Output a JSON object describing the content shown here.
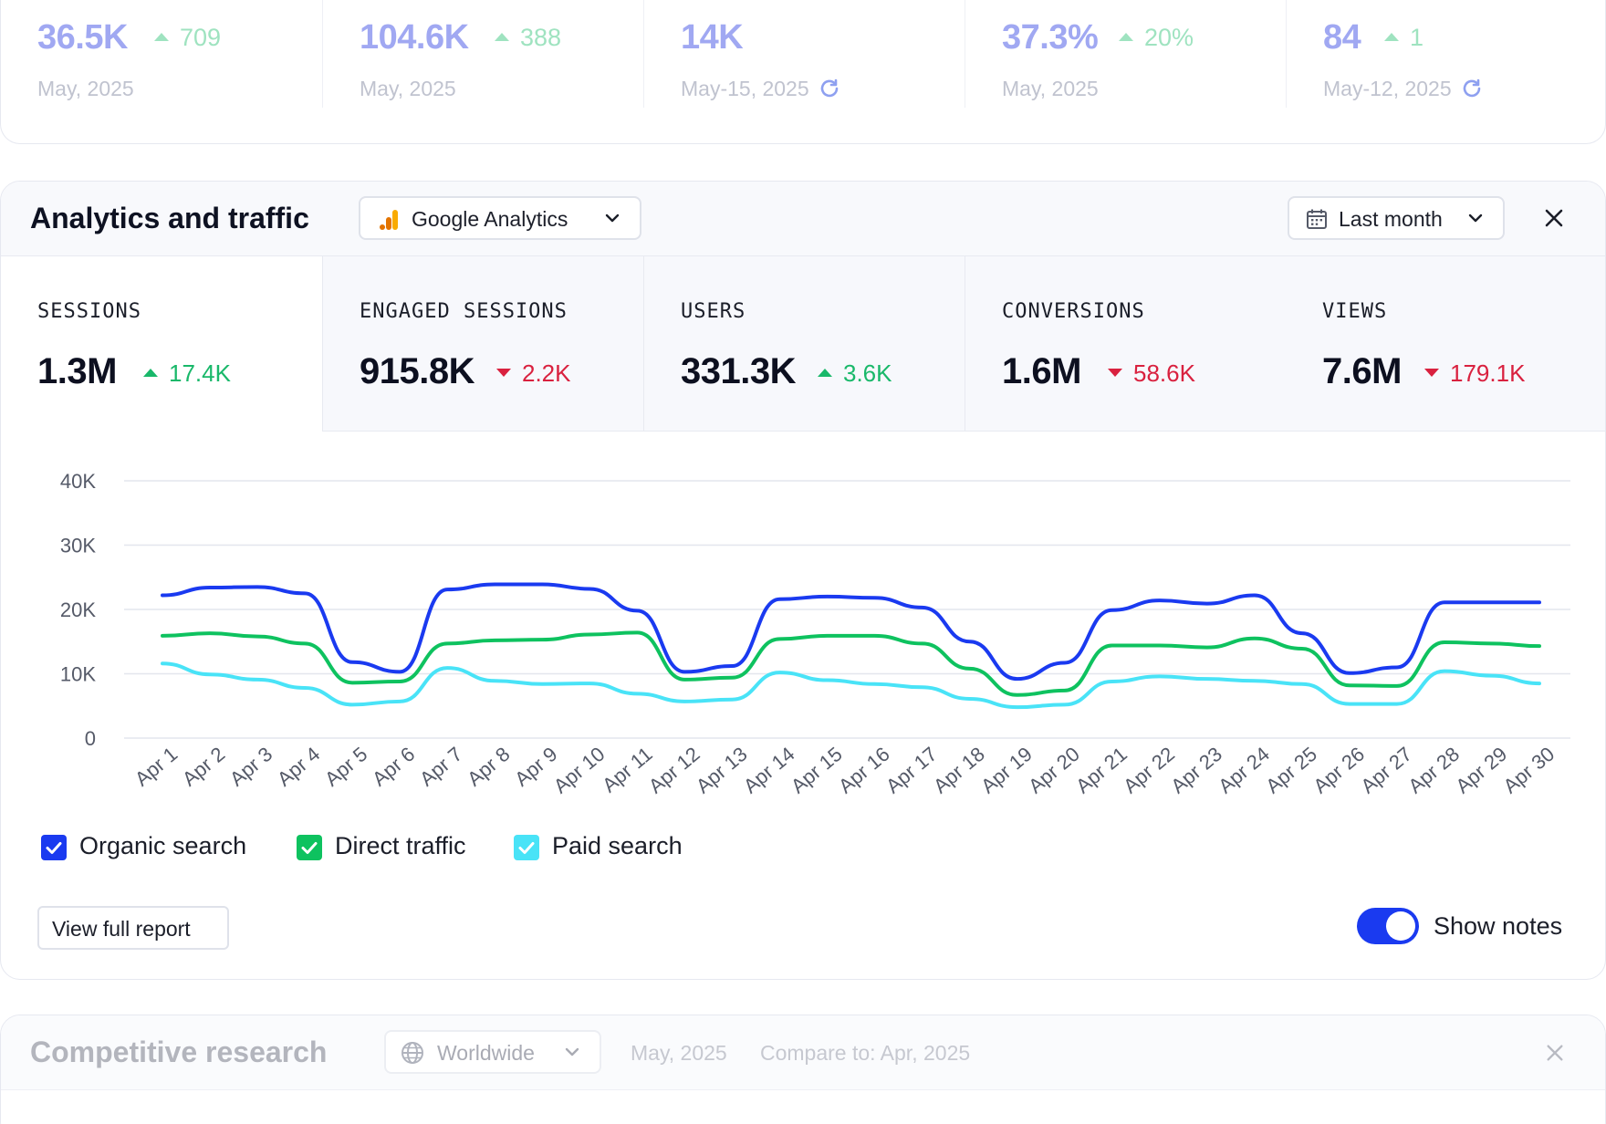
{
  "top_stats": [
    {
      "value": "36.5K",
      "change": "709",
      "date": "May, 2025",
      "refresh": false
    },
    {
      "value": "104.6K",
      "change": "388",
      "date": "May, 2025",
      "refresh": false
    },
    {
      "value": "14K",
      "change": "",
      "date": "May-15, 2025",
      "refresh": true
    },
    {
      "value": "37.3%",
      "change": "20%",
      "date": "May, 2025",
      "refresh": false
    },
    {
      "value": "84",
      "change": "1",
      "date": "May-12, 2025",
      "refresh": true
    }
  ],
  "analytics": {
    "title": "Analytics and traffic",
    "source_select": "Google Analytics",
    "period_select": "Last month",
    "metrics": [
      {
        "label": "SESSIONS",
        "value": "1.3M",
        "change": "17.4K",
        "direction": "up",
        "active": true
      },
      {
        "label": "ENGAGED SESSIONS",
        "value": "915.8K",
        "change": "2.2K",
        "direction": "down",
        "active": false
      },
      {
        "label": "USERS",
        "value": "331.3K",
        "change": "3.6K",
        "direction": "up",
        "active": false
      },
      {
        "label": "CONVERSIONS",
        "value": "1.6M",
        "change": "58.6K",
        "direction": "down",
        "active": false
      },
      {
        "label": "VIEWS",
        "value": "7.6M",
        "change": "179.1K",
        "direction": "down",
        "active": false
      }
    ],
    "legend": [
      {
        "label": "Organic search",
        "color": "#1a3af0",
        "checked": true
      },
      {
        "label": "Direct traffic",
        "color": "#0ec25f",
        "checked": true
      },
      {
        "label": "Paid search",
        "color": "#49e3f7",
        "checked": true
      }
    ],
    "view_report_label": "View full report",
    "show_notes_label": "Show notes",
    "show_notes_on": true
  },
  "chart_data": {
    "type": "line",
    "x": [
      "Apr 1",
      "Apr 2",
      "Apr 3",
      "Apr 4",
      "Apr 5",
      "Apr 6",
      "Apr 7",
      "Apr 8",
      "Apr 9",
      "Apr 10",
      "Apr 11",
      "Apr 12",
      "Apr 13",
      "Apr 14",
      "Apr 15",
      "Apr 16",
      "Apr 17",
      "Apr 18",
      "Apr 19",
      "Apr 20",
      "Apr 21",
      "Apr 22",
      "Apr 23",
      "Apr 24",
      "Apr 25",
      "Apr 26",
      "Apr 27",
      "Apr 28",
      "Apr 29",
      "Apr 30"
    ],
    "y_ticks": [
      "0",
      "10K",
      "20K",
      "30K",
      "40K"
    ],
    "ylim": [
      0,
      40000
    ],
    "grid": true,
    "series": [
      {
        "name": "Organic search",
        "color": "#1a3af0",
        "values": [
          22200,
          23400,
          23500,
          22500,
          11800,
          10300,
          23100,
          23900,
          23900,
          23200,
          19800,
          10300,
          11200,
          21600,
          22000,
          21800,
          20300,
          15000,
          9200,
          11700,
          19900,
          21400,
          20900,
          22200,
          16300,
          10100,
          11000,
          21100,
          21100,
          21100
        ]
      },
      {
        "name": "Direct traffic",
        "color": "#0ec25f",
        "values": [
          15900,
          16300,
          15800,
          14700,
          8600,
          8800,
          14700,
          15200,
          15300,
          16100,
          16400,
          9100,
          9400,
          15400,
          15900,
          15900,
          14700,
          10800,
          6700,
          7400,
          14400,
          14400,
          14100,
          15500,
          13900,
          8200,
          8100,
          14900,
          14700,
          14300
        ]
      },
      {
        "name": "Paid search",
        "color": "#49e3f7",
        "values": [
          11600,
          9900,
          9100,
          7800,
          5200,
          5700,
          10900,
          8900,
          8400,
          8500,
          6900,
          5700,
          6000,
          10200,
          9000,
          8400,
          7900,
          6100,
          4800,
          5200,
          8800,
          9600,
          9200,
          8900,
          8400,
          5300,
          5300,
          10400,
          9700,
          8500
        ]
      }
    ]
  },
  "competitive": {
    "title": "Competitive research",
    "region_select": "Worldwide",
    "date": "May, 2025",
    "compare": "Compare to: Apr, 2025"
  }
}
